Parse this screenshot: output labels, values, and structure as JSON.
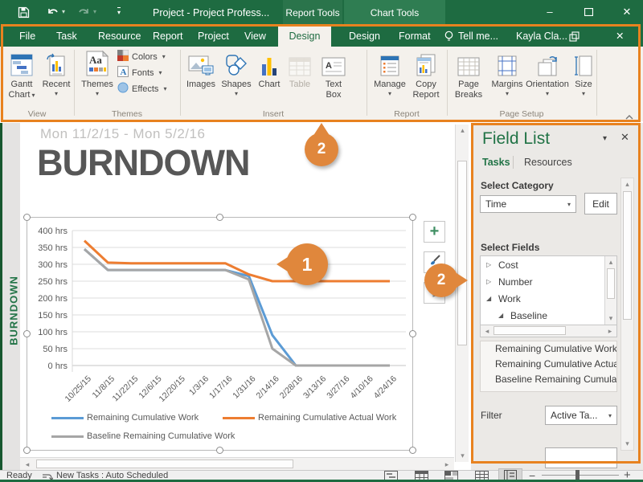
{
  "title_bar": {
    "title": "Project - Project Profess...",
    "contextual": [
      "Report Tools",
      "Chart Tools"
    ]
  },
  "ribbon": {
    "tabs": [
      {
        "label": "File"
      },
      {
        "label": "Task"
      },
      {
        "label": "Resource"
      },
      {
        "label": "Report"
      },
      {
        "label": "Project"
      },
      {
        "label": "View"
      },
      {
        "label": "Design",
        "active": true
      }
    ],
    "contextual_tabs": [
      "Design",
      "Format"
    ],
    "tell_me": "Tell me...",
    "user": "Kayla Cla...",
    "groups": [
      {
        "name": "View",
        "buttons": [
          "Gantt Chart",
          "Recent"
        ]
      },
      {
        "name": "Themes",
        "buttons": [
          "Themes",
          "Colors",
          "Fonts",
          "Effects"
        ]
      },
      {
        "name": "Insert",
        "buttons": [
          "Images",
          "Shapes",
          "Chart",
          "Table",
          "Text Box"
        ]
      },
      {
        "name": "Report",
        "buttons": [
          "Manage",
          "Copy Report"
        ]
      },
      {
        "name": "Page Setup",
        "buttons": [
          "Page Breaks",
          "Margins",
          "Orientation",
          "Size"
        ]
      }
    ]
  },
  "report": {
    "date_range": "Mon 11/2/15  -  Mon 5/2/16",
    "title": "BURNDOWN",
    "side_label": "BURNDOWN"
  },
  "chart_data": {
    "type": "line",
    "title": "BURNDOWN",
    "categories": [
      "10/25/15",
      "11/8/15",
      "11/22/15",
      "12/6/15",
      "12/20/15",
      "1/3/16",
      "1/17/16",
      "1/31/16",
      "2/14/16",
      "2/28/16",
      "3/13/16",
      "3/27/16",
      "4/10/16",
      "4/24/16"
    ],
    "series": [
      {
        "name": "Remaining Cumulative Work",
        "color": "#5B9BD5",
        "values": [
          345,
          283,
          283,
          283,
          283,
          283,
          283,
          265,
          90,
          0,
          0,
          0,
          0,
          0
        ]
      },
      {
        "name": "Remaining Cumulative Actual Work",
        "color": "#ED7D31",
        "values": [
          370,
          305,
          303,
          303,
          303,
          303,
          303,
          270,
          250,
          250,
          250,
          250,
          250,
          250
        ]
      },
      {
        "name": "Baseline Remaining Cumulative Work",
        "color": "#A6A6A6",
        "values": [
          345,
          283,
          283,
          283,
          283,
          283,
          283,
          255,
          50,
          0,
          0,
          0,
          0,
          0
        ]
      }
    ],
    "y_ticks": [
      "400 hrs",
      "350 hrs",
      "300 hrs",
      "250 hrs",
      "200 hrs",
      "150 hrs",
      "100 hrs",
      "50 hrs",
      "0 hrs"
    ],
    "ylim": [
      0,
      400
    ],
    "grid": true,
    "legend_position": "bottom"
  },
  "chart_tools": {
    "add_label": "+"
  },
  "field_list": {
    "title": "Field List",
    "tabs": [
      "Tasks",
      "Resources"
    ],
    "select_category_label": "Select Category",
    "category_value": "Time",
    "edit_label": "Edit",
    "select_fields_label": "Select Fields",
    "tree": [
      {
        "label": "Cost",
        "state": "collapsed"
      },
      {
        "label": "Number",
        "state": "collapsed"
      },
      {
        "label": "Work",
        "state": "expanded"
      },
      {
        "label": "Baseline",
        "state": "expanded",
        "indent": 1
      }
    ],
    "selected_fields": [
      "Remaining Cumulative Work",
      "Remaining Cumulative Actual Work",
      "Baseline Remaining Cumulative Work"
    ],
    "filter_label": "Filter",
    "filter_value": "Active Ta..."
  },
  "status_bar": {
    "ready": "Ready",
    "new_tasks": "New Tasks : Auto Scheduled"
  },
  "callouts": {
    "ribbon": "2",
    "chart": "1",
    "field_list": "2"
  },
  "icons": {
    "caret": "▾",
    "up": "▴",
    "down": "▾",
    "left": "◂",
    "right": "▸",
    "tree_collapsed": "▷",
    "tree_expanded": "◢",
    "minimize": "–",
    "close": "✕",
    "fl_caret": "▾",
    "fl_close": "✕",
    "zoom_out": "−",
    "zoom_in": "+"
  }
}
